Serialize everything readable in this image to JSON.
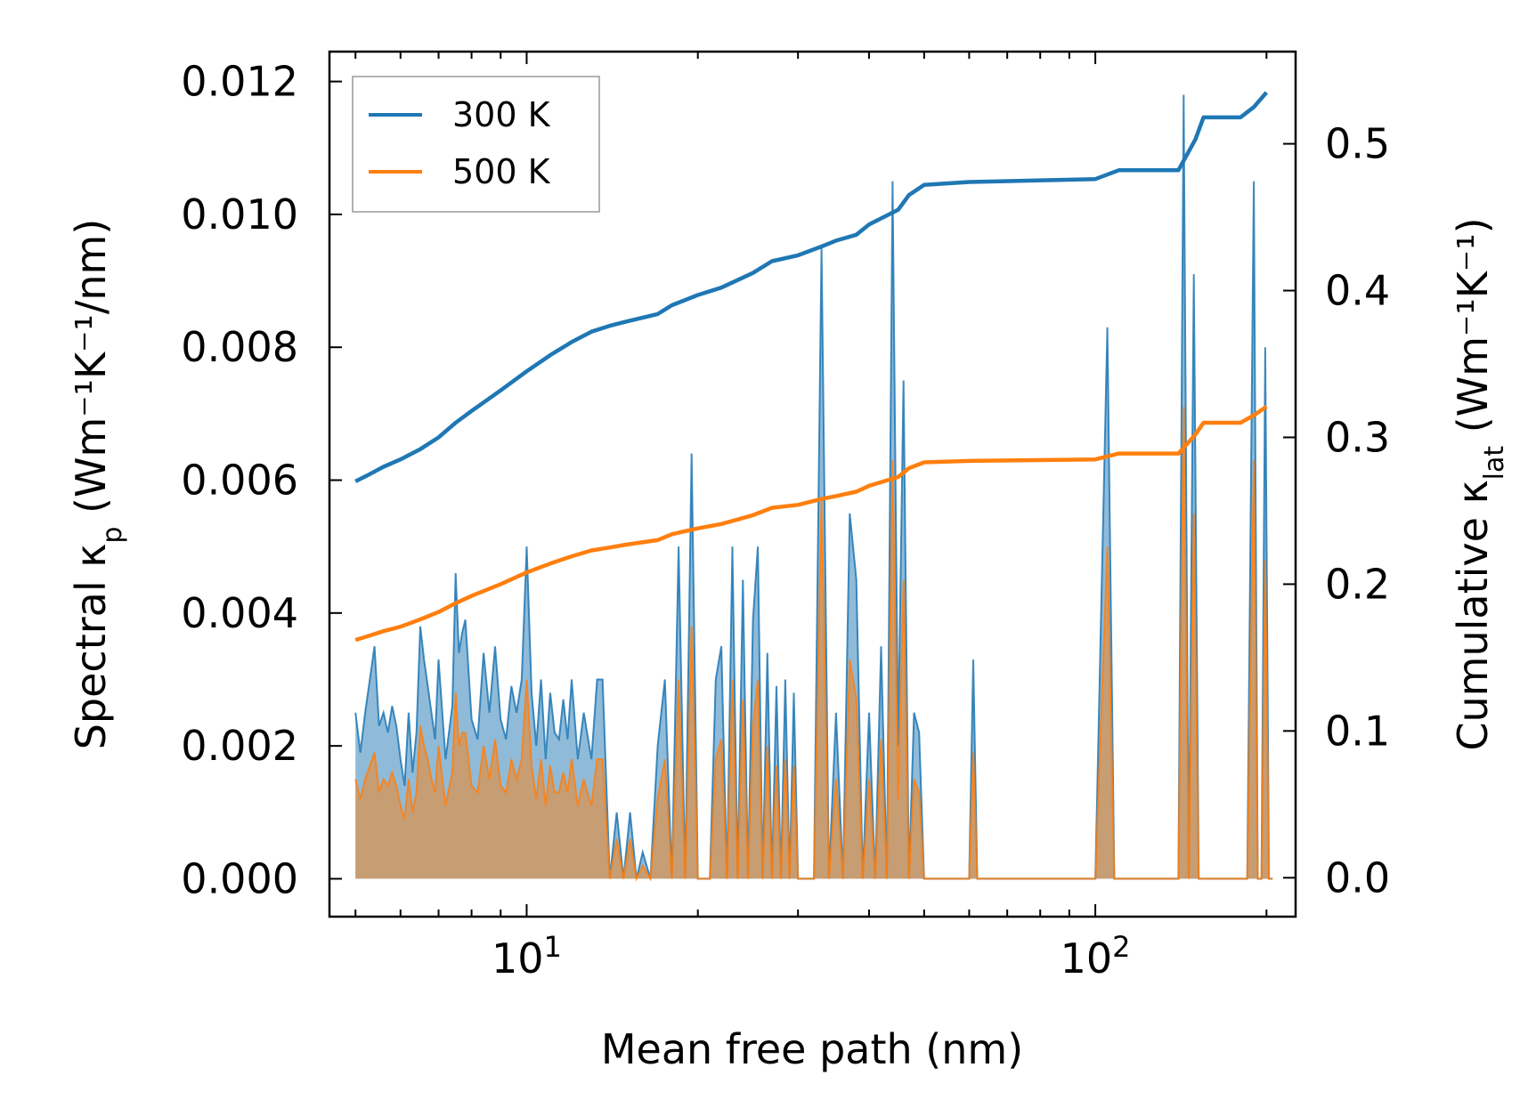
{
  "chart_data": {
    "type": "line",
    "title": "",
    "xlabel": "Mean free path (nm)",
    "ylabel_left": {
      "base": "Spectral κ",
      "sub": "p",
      "units": " (Wm⁻¹K⁻¹/nm)"
    },
    "ylabel_right": {
      "base": "Cumulative κ",
      "sub": "lat",
      "units": " (Wm⁻¹K⁻¹)"
    },
    "x_scale": "log",
    "xlim": [
      4.5,
      225
    ],
    "ylim_left": [
      -0.00057,
      0.01245
    ],
    "ylim_right": [
      -0.0265,
      0.5628
    ],
    "x_ticks": [
      {
        "value": 10,
        "base": "10",
        "exp": "1"
      },
      {
        "value": 100,
        "base": "10",
        "exp": "2"
      }
    ],
    "y_ticks_left": [
      "0.000",
      "0.002",
      "0.004",
      "0.006",
      "0.008",
      "0.010",
      "0.012"
    ],
    "y_ticks_right": [
      "0.0",
      "0.1",
      "0.2",
      "0.3",
      "0.4",
      "0.5"
    ],
    "legend": {
      "position": "top-left",
      "entries": [
        {
          "label": "300 K",
          "color": "#1f77b4"
        },
        {
          "label": "500 K",
          "color": "#ff7f0e"
        }
      ]
    },
    "series": [
      {
        "name": "300 K",
        "color": "#1f77b4",
        "cumulative": {
          "x": [
            5.0,
            5.3,
            5.6,
            6.0,
            6.5,
            7.0,
            7.5,
            8.0,
            9.0,
            10.0,
            11.0,
            12.0,
            13.0,
            14.0,
            15.0,
            17.0,
            18.0,
            20.0,
            22.0,
            25.0,
            27.0,
            30.0,
            33.0,
            35.0,
            38.0,
            40.0,
            45.0,
            47.0,
            50.0,
            60.0,
            100.0,
            110.0,
            140.0,
            150.0,
            155.0,
            160.0,
            180.0,
            190.0,
            200.0
          ],
          "y": [
            0.27,
            0.275,
            0.28,
            0.285,
            0.292,
            0.3,
            0.31,
            0.318,
            0.332,
            0.345,
            0.356,
            0.365,
            0.372,
            0.376,
            0.379,
            0.384,
            0.39,
            0.397,
            0.402,
            0.412,
            0.42,
            0.424,
            0.43,
            0.434,
            0.438,
            0.445,
            0.455,
            0.465,
            0.472,
            0.474,
            0.476,
            0.482,
            0.482,
            0.503,
            0.518,
            0.518,
            0.518,
            0.525,
            0.535
          ]
        },
        "spectral": {
          "x": [
            5.0,
            5.1,
            5.2,
            5.4,
            5.5,
            5.6,
            5.7,
            5.8,
            5.9,
            6.0,
            6.1,
            6.2,
            6.3,
            6.4,
            6.5,
            6.6,
            6.7,
            6.8,
            6.9,
            7.0,
            7.2,
            7.4,
            7.5,
            7.6,
            7.7,
            7.8,
            8.0,
            8.2,
            8.4,
            8.6,
            8.8,
            9.0,
            9.2,
            9.4,
            9.6,
            9.8,
            10.0,
            10.2,
            10.4,
            10.6,
            10.8,
            11.0,
            11.2,
            11.4,
            11.6,
            11.8,
            12.0,
            12.3,
            12.6,
            13.0,
            13.3,
            13.6,
            14.0,
            14.4,
            14.8,
            15.2,
            15.6,
            16.0,
            16.5,
            17.0,
            17.5,
            18.0,
            18.5,
            19.0,
            19.5,
            20.0,
            20.5,
            21.0,
            21.5,
            22.0,
            22.5,
            23.0,
            23.5,
            24.0,
            24.5,
            25.0,
            25.5,
            26.0,
            26.5,
            27.0,
            27.5,
            28.0,
            28.5,
            29.0,
            29.5,
            30.0,
            31.0,
            32.0,
            33.0,
            34.0,
            35.0,
            36.0,
            37.0,
            38.0,
            39.0,
            40.0,
            41.0,
            42.0,
            43.0,
            44.0,
            45.0,
            46.0,
            47.0,
            48.0,
            49.0,
            50.0,
            51.0,
            52.0,
            60.0,
            61.0,
            62.0,
            63.0,
            64.0,
            100.0,
            105.0,
            108.0,
            111.0,
            140.0,
            143.0,
            146.0,
            149.0,
            152.0,
            155.0,
            158.0,
            161.0,
            185.0,
            190.0,
            193.0,
            196.0,
            199.0,
            202.0,
            205.0
          ],
          "y": [
            0.0025,
            0.0019,
            0.0025,
            0.0035,
            0.0023,
            0.0025,
            0.0022,
            0.0026,
            0.0023,
            0.0018,
            0.0014,
            0.0025,
            0.0016,
            0.0022,
            0.0038,
            0.0033,
            0.0029,
            0.0025,
            0.0021,
            0.0033,
            0.0018,
            0.0026,
            0.0046,
            0.0034,
            0.0037,
            0.0039,
            0.0024,
            0.0021,
            0.0034,
            0.0025,
            0.0035,
            0.0024,
            0.0021,
            0.0029,
            0.0025,
            0.003,
            0.005,
            0.0028,
            0.002,
            0.003,
            0.0018,
            0.0028,
            0.0022,
            0.0021,
            0.0027,
            0.0021,
            0.003,
            0.0018,
            0.0025,
            0.0018,
            0.003,
            0.003,
            0.0,
            0.001,
            0.0,
            0.001,
            0.0,
            0.0004,
            0.0,
            0.002,
            0.003,
            0.0,
            0.005,
            0.0,
            0.0064,
            0.0,
            0.0,
            0.0,
            0.003,
            0.0035,
            0.0,
            0.005,
            0.0,
            0.0045,
            0.0,
            0.0039,
            0.005,
            0.0,
            0.0034,
            0.0,
            0.0029,
            0.0,
            0.003,
            0.0,
            0.0028,
            0.0,
            0.0,
            0.0,
            0.0095,
            0.0,
            0.0025,
            0.0,
            0.0055,
            0.0045,
            0.0,
            0.0025,
            0.0,
            0.0035,
            0.0,
            0.0105,
            0.002,
            0.0075,
            0.0,
            0.0025,
            0.0022,
            0.0,
            0.0,
            0.0,
            0.0,
            0.0033,
            0.0,
            0.0,
            0.0,
            0.0,
            0.0083,
            0.0,
            0.0,
            0.0,
            0.0118,
            0.0,
            0.0091,
            0.0,
            0.0,
            0.0,
            0.0,
            0.0,
            0.0105,
            0.0,
            0.0,
            0.008,
            0.0,
            0.0
          ]
        }
      },
      {
        "name": "500 K",
        "color": "#ff7f0e",
        "cumulative": {
          "x": [
            5.0,
            5.3,
            5.6,
            6.0,
            6.5,
            7.0,
            7.5,
            8.0,
            9.0,
            10.0,
            11.0,
            12.0,
            13.0,
            14.0,
            15.0,
            17.0,
            18.0,
            20.0,
            22.0,
            25.0,
            27.0,
            30.0,
            33.0,
            35.0,
            38.0,
            40.0,
            45.0,
            47.0,
            50.0,
            60.0,
            100.0,
            110.0,
            140.0,
            150.0,
            155.0,
            160.0,
            180.0,
            190.0,
            200.0
          ],
          "y": [
            0.162,
            0.165,
            0.168,
            0.171,
            0.176,
            0.181,
            0.187,
            0.192,
            0.2,
            0.208,
            0.214,
            0.219,
            0.223,
            0.225,
            0.227,
            0.23,
            0.234,
            0.238,
            0.241,
            0.247,
            0.252,
            0.254,
            0.258,
            0.26,
            0.263,
            0.267,
            0.273,
            0.279,
            0.283,
            0.284,
            0.285,
            0.289,
            0.289,
            0.302,
            0.31,
            0.31,
            0.31,
            0.315,
            0.321
          ]
        },
        "spectral": {
          "x": [
            5.0,
            5.1,
            5.2,
            5.4,
            5.5,
            5.6,
            5.7,
            5.8,
            5.9,
            6.0,
            6.1,
            6.2,
            6.3,
            6.4,
            6.5,
            6.6,
            6.7,
            6.8,
            6.9,
            7.0,
            7.2,
            7.4,
            7.5,
            7.6,
            7.7,
            7.8,
            8.0,
            8.2,
            8.4,
            8.6,
            8.8,
            9.0,
            9.2,
            9.4,
            9.6,
            9.8,
            10.0,
            10.2,
            10.4,
            10.6,
            10.8,
            11.0,
            11.2,
            11.4,
            11.6,
            11.8,
            12.0,
            12.3,
            12.6,
            13.0,
            13.3,
            13.6,
            14.0,
            14.4,
            14.8,
            15.2,
            15.6,
            16.0,
            16.5,
            17.0,
            17.5,
            18.0,
            18.5,
            19.0,
            19.5,
            20.0,
            20.5,
            21.0,
            21.5,
            22.0,
            22.5,
            23.0,
            23.5,
            24.0,
            24.5,
            25.0,
            25.5,
            26.0,
            26.5,
            27.0,
            27.5,
            28.0,
            28.5,
            29.0,
            29.5,
            30.0,
            31.0,
            32.0,
            33.0,
            34.0,
            35.0,
            36.0,
            37.0,
            38.0,
            39.0,
            40.0,
            41.0,
            42.0,
            43.0,
            44.0,
            45.0,
            46.0,
            47.0,
            48.0,
            49.0,
            50.0,
            51.0,
            52.0,
            60.0,
            61.0,
            62.0,
            63.0,
            64.0,
            100.0,
            105.0,
            108.0,
            111.0,
            140.0,
            143.0,
            146.0,
            149.0,
            152.0,
            155.0,
            158.0,
            161.0,
            185.0,
            190.0,
            193.0,
            196.0,
            199.0,
            202.0,
            205.0
          ],
          "y": [
            0.0015,
            0.0012,
            0.0015,
            0.0019,
            0.0013,
            0.0015,
            0.0014,
            0.0016,
            0.0014,
            0.0011,
            0.0009,
            0.0015,
            0.001,
            0.0013,
            0.0023,
            0.002,
            0.0018,
            0.0015,
            0.0013,
            0.002,
            0.0011,
            0.0016,
            0.0028,
            0.002,
            0.0022,
            0.0022,
            0.0014,
            0.0013,
            0.002,
            0.0015,
            0.0021,
            0.0014,
            0.0013,
            0.0018,
            0.0015,
            0.0018,
            0.003,
            0.0017,
            0.0012,
            0.0018,
            0.0011,
            0.0017,
            0.0013,
            0.0013,
            0.0016,
            0.0013,
            0.0018,
            0.0011,
            0.0015,
            0.0011,
            0.0018,
            0.0018,
            0.0,
            0.0006,
            0.0,
            0.0006,
            0.0,
            0.0002,
            0.0,
            0.0012,
            0.0018,
            0.0,
            0.003,
            0.0,
            0.0038,
            0.0,
            0.0,
            0.0,
            0.0018,
            0.0021,
            0.0,
            0.003,
            0.0,
            0.0027,
            0.0,
            0.0023,
            0.003,
            0.0,
            0.002,
            0.0,
            0.0017,
            0.0,
            0.0018,
            0.0,
            0.0017,
            0.0,
            0.0,
            0.0,
            0.0057,
            0.0,
            0.0015,
            0.0,
            0.0033,
            0.0027,
            0.0,
            0.0015,
            0.0,
            0.0021,
            0.0,
            0.0063,
            0.0012,
            0.0045,
            0.0,
            0.0015,
            0.0013,
            0.0,
            0.0,
            0.0,
            0.0,
            0.0019,
            0.0,
            0.0,
            0.0,
            0.0,
            0.005,
            0.0,
            0.0,
            0.0,
            0.0071,
            0.0,
            0.0055,
            0.0,
            0.0,
            0.0,
            0.0,
            0.0,
            0.0063,
            0.0,
            0.0,
            0.0048,
            0.0,
            0.0
          ]
        }
      }
    ]
  }
}
